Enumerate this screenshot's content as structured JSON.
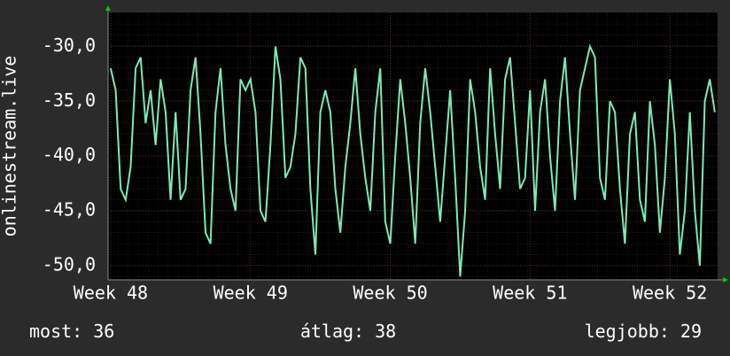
{
  "chart_data": {
    "type": "line",
    "ylabel": "onlinestream.live",
    "color": "#7fe8b4",
    "grid": true,
    "xlim": [
      -0.13,
      30.39
    ],
    "ylim": [
      -51.3,
      -26.9
    ],
    "xticks": [
      {
        "value": 0,
        "label": "Week 48"
      },
      {
        "value": 7,
        "label": "Week 49"
      },
      {
        "value": 14,
        "label": "Week 50"
      },
      {
        "value": 21,
        "label": "Week 51"
      },
      {
        "value": 28,
        "label": "Week 52"
      }
    ],
    "yticks": [
      {
        "value": -50,
        "label": "-50,0"
      },
      {
        "value": -45,
        "label": "-45,0"
      },
      {
        "value": -40,
        "label": "-40,0"
      },
      {
        "value": -35,
        "label": "-35,0"
      },
      {
        "value": -30,
        "label": "-30,0"
      }
    ],
    "x": [
      0,
      0.25,
      0.5,
      0.75,
      1,
      1.25,
      1.5,
      1.75,
      2,
      2.25,
      2.5,
      2.75,
      3,
      3.25,
      3.5,
      3.75,
      4,
      4.25,
      4.5,
      4.75,
      5,
      5.25,
      5.5,
      5.75,
      6,
      6.25,
      6.5,
      6.75,
      7,
      7.25,
      7.5,
      7.75,
      8,
      8.25,
      8.5,
      8.75,
      9,
      9.25,
      9.5,
      9.75,
      10,
      10.25,
      10.5,
      10.75,
      11,
      11.25,
      11.5,
      11.75,
      12,
      12.25,
      12.5,
      12.75,
      13,
      13.25,
      13.5,
      13.75,
      14,
      14.25,
      14.5,
      14.75,
      15,
      15.25,
      15.5,
      15.75,
      16,
      16.25,
      16.5,
      16.75,
      17,
      17.25,
      17.5,
      17.75,
      18,
      18.25,
      18.5,
      18.75,
      19,
      19.25,
      19.5,
      19.75,
      20,
      20.25,
      20.5,
      20.75,
      21,
      21.25,
      21.5,
      21.75,
      22,
      22.25,
      22.5,
      22.75,
      23,
      23.25,
      23.5,
      23.75,
      24,
      24.25,
      24.5,
      24.75,
      25,
      25.25,
      25.5,
      25.75,
      26,
      26.25,
      26.5,
      26.75,
      27,
      27.25,
      27.5,
      27.75,
      28,
      28.25,
      28.5,
      28.75,
      29,
      29.25,
      29.5,
      29.75,
      30,
      30.25
    ],
    "values": [
      -32,
      -34,
      -43,
      -44,
      -41,
      -32,
      -31,
      -37,
      -34,
      -39,
      -33,
      -36,
      -44,
      -36,
      -44,
      -43,
      -34,
      -31,
      -38,
      -47,
      -48,
      -36,
      -32,
      -39,
      -43,
      -45,
      -33,
      -34,
      -33,
      -36,
      -45,
      -46,
      -39,
      -30,
      -33,
      -42,
      -41,
      -38,
      -31,
      -32,
      -43,
      -49,
      -36,
      -34,
      -36,
      -43,
      -47,
      -41,
      -37,
      -32,
      -38,
      -42,
      -45,
      -36,
      -32,
      -46,
      -48,
      -40,
      -33,
      -37,
      -42,
      -48,
      -37,
      -32,
      -36,
      -41,
      -46,
      -40,
      -34,
      -42,
      -51,
      -45,
      -33,
      -36,
      -41,
      -44,
      -32,
      -38,
      -43,
      -33,
      -31,
      -37,
      -43,
      -42,
      -34,
      -45,
      -36,
      -33,
      -40,
      -45,
      -35,
      -31,
      -38,
      -44,
      -34,
      -32,
      -30,
      -31,
      -42,
      -44,
      -35,
      -36,
      -43,
      -48,
      -38,
      -36,
      -44,
      -46,
      -35,
      -39,
      -47,
      -42,
      -33,
      -38,
      -49,
      -45,
      -36,
      -45,
      -50,
      -35,
      -33,
      -36
    ],
    "stats": [
      {
        "label": "most:",
        "value": 36
      },
      {
        "label": "átlag:",
        "value": 38
      },
      {
        "label": "legjobb:",
        "value": 29
      }
    ]
  }
}
